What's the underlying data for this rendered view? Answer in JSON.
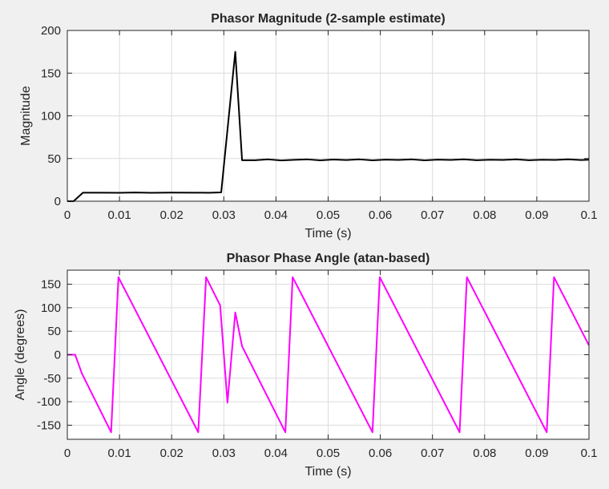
{
  "chart_data": [
    {
      "type": "line",
      "title": "Phasor Magnitude (2-sample estimate)",
      "xlabel": "Time (s)",
      "ylabel": "Magnitude",
      "xlim": [
        0,
        0.1
      ],
      "ylim": [
        0,
        200
      ],
      "xticks": [
        0,
        0.01,
        0.02,
        0.03,
        0.04,
        0.05,
        0.06,
        0.07,
        0.08,
        0.09,
        0.1
      ],
      "xtick_labels": [
        "0",
        "0.01",
        "0.02",
        "0.03",
        "0.04",
        "0.05",
        "0.06",
        "0.07",
        "0.08",
        "0.09",
        "0.1"
      ],
      "yticks": [
        0,
        50,
        100,
        150,
        200
      ],
      "ytick_labels": [
        "0",
        "50",
        "100",
        "150",
        "200"
      ],
      "grid": true,
      "series": [
        {
          "color": "#000000",
          "x": [
            0,
            0.0012,
            0.003,
            0.006,
            0.01,
            0.013,
            0.016,
            0.02,
            0.024,
            0.027,
            0.0295,
            0.0322,
            0.0335,
            0.036,
            0.0385,
            0.041,
            0.0435,
            0.046,
            0.0485,
            0.051,
            0.0535,
            0.056,
            0.0585,
            0.061,
            0.0635,
            0.066,
            0.0685,
            0.071,
            0.0735,
            0.076,
            0.0785,
            0.081,
            0.0835,
            0.086,
            0.0885,
            0.091,
            0.0935,
            0.096,
            0.0985,
            0.1
          ],
          "y": [
            0,
            0,
            10,
            10,
            9.8,
            10.2,
            9.9,
            10.1,
            10,
            9.9,
            10.3,
            175,
            48,
            48,
            49,
            47.8,
            48.5,
            49,
            47.9,
            48.8,
            48.2,
            49,
            47.9,
            48.7,
            48.3,
            49,
            47.9,
            48.7,
            48.3,
            49,
            48,
            48.6,
            48.3,
            49,
            48,
            48.6,
            48.3,
            49,
            48.2,
            48.6
          ]
        }
      ]
    },
    {
      "type": "line",
      "title": "Phasor Phase Angle (atan-based)",
      "xlabel": "Time (s)",
      "ylabel": "Angle (degrees)",
      "xlim": [
        0,
        0.1
      ],
      "ylim": [
        -180,
        180
      ],
      "xticks": [
        0,
        0.01,
        0.02,
        0.03,
        0.04,
        0.05,
        0.06,
        0.07,
        0.08,
        0.09,
        0.1
      ],
      "xtick_labels": [
        "0",
        "0.01",
        "0.02",
        "0.03",
        "0.04",
        "0.05",
        "0.06",
        "0.07",
        "0.08",
        "0.09",
        "0.1"
      ],
      "yticks": [
        -150,
        -100,
        -50,
        0,
        50,
        100,
        150
      ],
      "ytick_labels": [
        "-150",
        "-100",
        "-50",
        "0",
        "50",
        "100",
        "150"
      ],
      "grid": true,
      "series": [
        {
          "color": "#ff00ff",
          "x": [
            0,
            0.0015,
            0.0028,
            0.0084,
            0.0098,
            0.0251,
            0.0266,
            0.0293,
            0.0307,
            0.0322,
            0.0335,
            0.0418,
            0.0432,
            0.0585,
            0.0599,
            0.0752,
            0.0766,
            0.0919,
            0.0933,
            0.1
          ],
          "y": [
            0,
            0,
            -40,
            -165,
            165,
            -165,
            165,
            105,
            -102,
            90,
            18,
            -165,
            165,
            -165,
            165,
            -165,
            165,
            -165,
            165,
            20
          ]
        }
      ]
    }
  ]
}
